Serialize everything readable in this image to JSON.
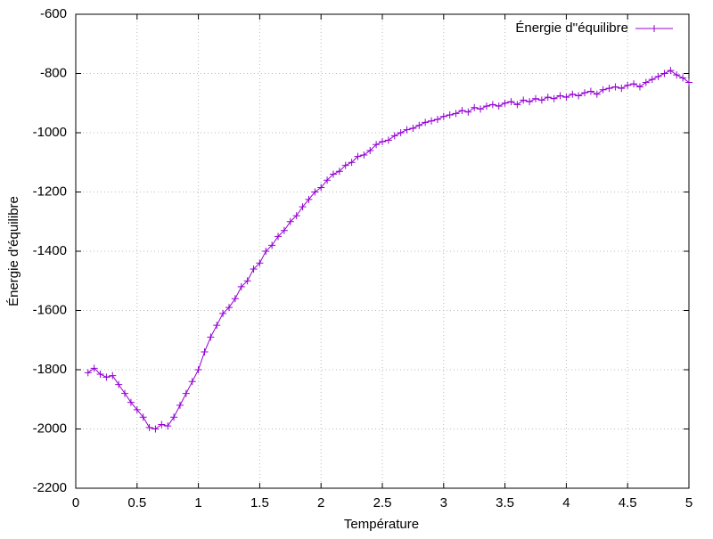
{
  "chart_data": {
    "type": "line",
    "xlabel": "Température",
    "ylabel": "Énergie d'équilibre",
    "xlim": [
      0,
      5
    ],
    "ylim": [
      -2200,
      -600
    ],
    "xticks": [
      0,
      0.5,
      1,
      1.5,
      2,
      2.5,
      3,
      3.5,
      4,
      4.5,
      5
    ],
    "yticks": [
      -2200,
      -2000,
      -1800,
      -1600,
      -1400,
      -1200,
      -1000,
      -800,
      -600
    ],
    "grid": true,
    "legend": "upper-right",
    "x": [
      0.1,
      0.15,
      0.2,
      0.25,
      0.3,
      0.35,
      0.4,
      0.45,
      0.5,
      0.55,
      0.6,
      0.65,
      0.7,
      0.75,
      0.8,
      0.85,
      0.9,
      0.95,
      1,
      1.05,
      1.1,
      1.15,
      1.2,
      1.25,
      1.3,
      1.35,
      1.4,
      1.45,
      1.5,
      1.55,
      1.6,
      1.65,
      1.7,
      1.75,
      1.8,
      1.85,
      1.9,
      1.95,
      2,
      2.05,
      2.1,
      2.15,
      2.2,
      2.25,
      2.3,
      2.35,
      2.4,
      2.45,
      2.5,
      2.55,
      2.6,
      2.65,
      2.7,
      2.75,
      2.8,
      2.85,
      2.9,
      2.95,
      3,
      3.05,
      3.1,
      3.15,
      3.2,
      3.25,
      3.3,
      3.35,
      3.4,
      3.45,
      3.5,
      3.55,
      3.6,
      3.65,
      3.7,
      3.75,
      3.8,
      3.85,
      3.9,
      3.95,
      4,
      4.05,
      4.1,
      4.15,
      4.2,
      4.25,
      4.3,
      4.35,
      4.4,
      4.45,
      4.5,
      4.55,
      4.6,
      4.65,
      4.7,
      4.75,
      4.8,
      4.85,
      4.9,
      4.95,
      5
    ],
    "series": [
      {
        "name": "Énergie d''équilibre",
        "color": "#9400d3",
        "values": [
          -1810,
          -1795,
          -1815,
          -1825,
          -1820,
          -1850,
          -1880,
          -1910,
          -1935,
          -1960,
          -1995,
          -2000,
          -1985,
          -1990,
          -1960,
          -1920,
          -1880,
          -1840,
          -1800,
          -1740,
          -1690,
          -1650,
          -1610,
          -1590,
          -1560,
          -1520,
          -1500,
          -1460,
          -1440,
          -1400,
          -1380,
          -1350,
          -1330,
          -1300,
          -1280,
          -1250,
          -1225,
          -1200,
          -1185,
          -1160,
          -1140,
          -1130,
          -1110,
          -1100,
          -1080,
          -1075,
          -1060,
          -1040,
          -1030,
          -1025,
          -1010,
          -1000,
          -990,
          -985,
          -975,
          -965,
          -960,
          -955,
          -945,
          -940,
          -935,
          -925,
          -930,
          -915,
          -920,
          -910,
          -905,
          -910,
          -900,
          -895,
          -905,
          -890,
          -895,
          -885,
          -890,
          -880,
          -885,
          -875,
          -880,
          -870,
          -875,
          -865,
          -860,
          -870,
          -855,
          -850,
          -845,
          -850,
          -840,
          -835,
          -845,
          -830,
          -820,
          -810,
          -800,
          -790,
          -805,
          -815,
          -830
        ]
      }
    ]
  }
}
